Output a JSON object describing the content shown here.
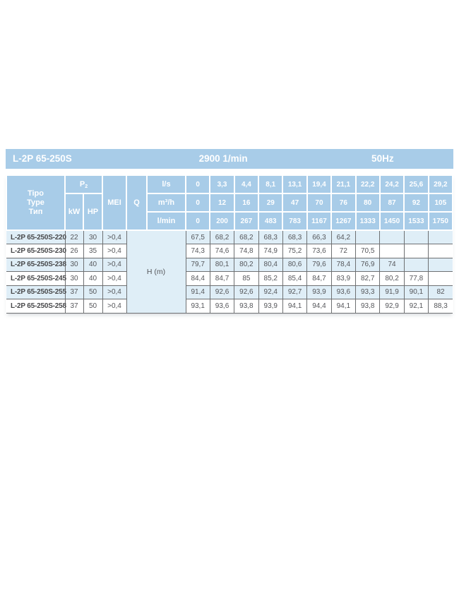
{
  "title_bar": {
    "model": "L-2P 65-250S",
    "speed": "2900 1/min",
    "frequency": "50Hz"
  },
  "colors": {
    "header_blue": "#a8cce8",
    "row_blue": "#dfeef7",
    "border_gray": "#6e7072",
    "text_gray": "#55565a"
  },
  "table": {
    "type_header_lines": [
      "Tipo",
      "Type",
      "Тип"
    ],
    "p2_label": "P",
    "p2_sub": "2",
    "kw_label": "kW",
    "hp_label": "HP",
    "mei_label": "MEI",
    "q_label": "Q",
    "units": [
      "l/s",
      "m³/h",
      "l/min"
    ],
    "flow_ls": [
      "0",
      "3,3",
      "4,4",
      "8,1",
      "13,1",
      "19,4",
      "21,1",
      "22,2",
      "24,2",
      "25,6",
      "29,2"
    ],
    "flow_m3h": [
      "0",
      "12",
      "16",
      "29",
      "47",
      "70",
      "76",
      "80",
      "87",
      "92",
      "105"
    ],
    "flow_lmin": [
      "0",
      "200",
      "267",
      "483",
      "783",
      "1167",
      "1267",
      "1333",
      "1450",
      "1533",
      "1750"
    ],
    "head_label": "H (m)",
    "rows": [
      {
        "type": "L-2P 65-250S-220",
        "kw": "22",
        "hp": "30",
        "mei": ">0,4",
        "values": [
          "67,5",
          "68,2",
          "68,2",
          "68,3",
          "68,3",
          "66,3",
          "64,2",
          "",
          "",
          "",
          ""
        ]
      },
      {
        "type": "L-2P 65-250S-230",
        "kw": "26",
        "hp": "35",
        "mei": ">0,4",
        "values": [
          "74,3",
          "74,6",
          "74,8",
          "74,9",
          "75,2",
          "73,6",
          "72",
          "70,5",
          "",
          "",
          ""
        ]
      },
      {
        "type": "L-2P 65-250S-238",
        "kw": "30",
        "hp": "40",
        "mei": ">0,4",
        "values": [
          "79,7",
          "80,1",
          "80,2",
          "80,4",
          "80,6",
          "79,6",
          "78,4",
          "76,9",
          "74",
          "",
          ""
        ]
      },
      {
        "type": "L-2P 65-250S-245",
        "kw": "30",
        "hp": "40",
        "mei": ">0,4",
        "values": [
          "84,4",
          "84,7",
          "85",
          "85,2",
          "85,4",
          "84,7",
          "83,9",
          "82,7",
          "80,2",
          "77,8",
          ""
        ]
      },
      {
        "type": "L-2P 65-250S-255",
        "kw": "37",
        "hp": "50",
        "mei": ">0,4",
        "values": [
          "91,4",
          "92,6",
          "92,6",
          "92,4",
          "92,7",
          "93,9",
          "93,6",
          "93,3",
          "91,9",
          "90,1",
          "82"
        ]
      },
      {
        "type": "L-2P 65-250S-258",
        "kw": "37",
        "hp": "50",
        "mei": ">0,4",
        "values": [
          "93,1",
          "93,6",
          "93,8",
          "93,9",
          "94,1",
          "94,4",
          "94,1",
          "93,8",
          "92,9",
          "92,1",
          "88,3"
        ]
      }
    ]
  }
}
